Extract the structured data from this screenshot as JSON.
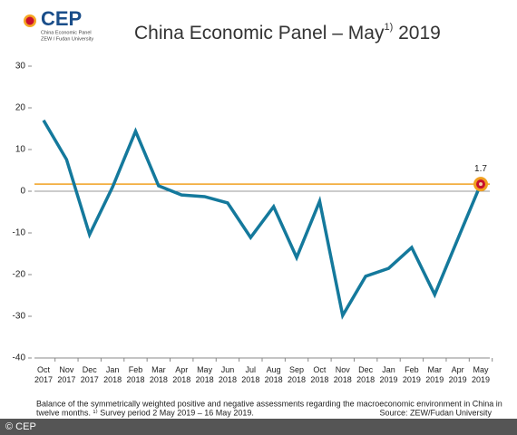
{
  "chart_data": {
    "type": "line",
    "logo": {
      "mark": "CEP",
      "line1": "China Economic Panel",
      "line2": "ZEW / Fudan University"
    },
    "title": "China Economic Panel – May",
    "title_sup": "1)",
    "title_end": " 2019",
    "categories": [
      [
        "Oct",
        "2017"
      ],
      [
        "Nov",
        "2017"
      ],
      [
        "Dec",
        "2017"
      ],
      [
        "Jan",
        "2018"
      ],
      [
        "Feb",
        "2018"
      ],
      [
        "Mar",
        "2018"
      ],
      [
        "Apr",
        "2018"
      ],
      [
        "May",
        "2018"
      ],
      [
        "Jun",
        "2018"
      ],
      [
        "Jul",
        "2018"
      ],
      [
        "Aug",
        "2018"
      ],
      [
        "Sep",
        "2018"
      ],
      [
        "Oct",
        "2018"
      ],
      [
        "Nov",
        "2018"
      ],
      [
        "Dec",
        "2018"
      ],
      [
        "Jan",
        "2019"
      ],
      [
        "Feb",
        "2019"
      ],
      [
        "Mar",
        "2019"
      ],
      [
        "Apr",
        "2019"
      ],
      [
        "May",
        "2019"
      ]
    ],
    "series": [
      {
        "name": "China Economic Panel",
        "color": "#14799c",
        "values": [
          17.0,
          7.6,
          -10.4,
          1.0,
          14.4,
          1.3,
          -0.9,
          -1.3,
          -2.8,
          -11.1,
          -3.7,
          -15.9,
          -2.4,
          -29.8,
          -20.4,
          -18.5,
          -13.5,
          -24.8,
          -11.5,
          1.7
        ]
      }
    ],
    "reference_value": 1.7,
    "reference_color": "#f0a020",
    "ylim": [
      -40,
      30
    ],
    "yticks": [
      -40,
      -30,
      -20,
      -10,
      0,
      10,
      20,
      30
    ],
    "note": [
      "Balance of the symmetrically weighted positive and negative assessments regarding the macroeconomic environment in China in",
      "twelve months. ¹⁾ Survey period 2 May 2019 – 16 May 2019."
    ],
    "source": "Source: ZEW/Fudan University",
    "copyright": "© CEP"
  }
}
